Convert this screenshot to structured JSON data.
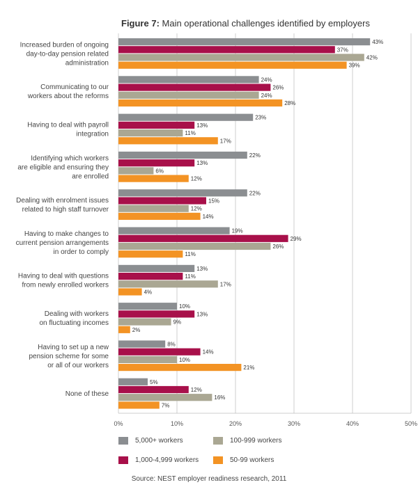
{
  "figure": {
    "title_prefix": "Figure 7:",
    "title_rest": " Main operational challenges identified by employers",
    "source": "Source: NEST employer readiness research, 2011"
  },
  "chart_data": {
    "type": "bar",
    "orientation": "horizontal",
    "title": "Figure 7: Main operational challenges identified by employers",
    "xlim": [
      0,
      50
    ],
    "x_ticks": [
      "0%",
      "10%",
      "20%",
      "30%",
      "40%",
      "50%"
    ],
    "grid": true,
    "legend_position": "bottom",
    "categories": [
      [
        "Increased burden of ongoing",
        "day-to-day pension related",
        "administration"
      ],
      [
        "Communicating to our",
        "workers about the reforms"
      ],
      [
        "Having to deal with payroll",
        "integration"
      ],
      [
        "Identifying which workers",
        "are eligible and ensuring they",
        "are enrolled"
      ],
      [
        "Dealing with enrolment issues",
        "related to high staff turnover"
      ],
      [
        "Having to make changes to",
        "current pension arrangements",
        "in order to comply"
      ],
      [
        "Having to deal with questions",
        "from newly enrolled workers"
      ],
      [
        "Dealing with workers",
        "on fluctuating incomes"
      ],
      [
        "Having to set up a new",
        "pension scheme for some",
        "or all of our workers"
      ],
      [
        "None of these"
      ]
    ],
    "series": [
      {
        "name": "5,000+ workers",
        "color": "#8b8e91",
        "values": [
          43,
          24,
          23,
          22,
          22,
          19,
          13,
          10,
          8,
          5
        ]
      },
      {
        "name": "1,000-4,999 workers",
        "color": "#a8104a",
        "values": [
          37,
          26,
          13,
          13,
          15,
          29,
          11,
          13,
          14,
          12
        ]
      },
      {
        "name": "100-999 workers",
        "color": "#aaa793",
        "values": [
          42,
          24,
          11,
          6,
          12,
          26,
          17,
          9,
          10,
          16
        ]
      },
      {
        "name": "50-99 workers",
        "color": "#f39324",
        "values": [
          39,
          28,
          17,
          12,
          14,
          11,
          4,
          2,
          21,
          7
        ]
      }
    ],
    "legend_order": [
      0,
      2,
      1,
      3
    ]
  }
}
